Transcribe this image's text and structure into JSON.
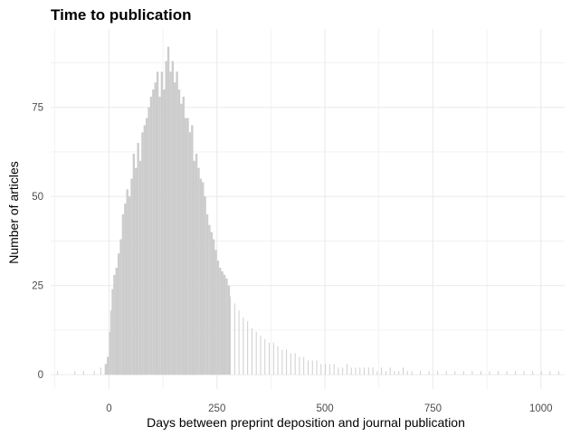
{
  "chart_data": {
    "type": "bar",
    "title": "Time to publication",
    "xlabel": "Days between preprint deposition and journal publication",
    "ylabel": "Number of articles",
    "xlim": [
      -135,
      1055
    ],
    "ylim": [
      -4,
      97
    ],
    "x_ticks": [
      0,
      250,
      500,
      750,
      1000
    ],
    "x_tick_labels": [
      "0",
      "250",
      "500",
      "750",
      "1000"
    ],
    "y_ticks": [
      0,
      25,
      50,
      75
    ],
    "y_tick_labels": [
      "0",
      "25",
      "50",
      "75"
    ],
    "grid": true,
    "bar_color": "#cccccc",
    "grid_color": "#ebebeb",
    "bin_width": 2,
    "series": [
      {
        "x": [
          -120,
          -80,
          -60,
          -35,
          -20,
          -10,
          -5,
          0,
          3,
          6,
          10,
          15,
          20,
          25,
          30,
          35,
          40,
          45,
          50,
          55,
          60,
          65,
          70,
          75,
          80,
          85,
          90,
          95,
          100,
          105,
          110,
          115,
          120,
          125,
          130,
          135,
          140,
          145,
          150,
          155,
          160,
          165,
          170,
          175,
          180,
          185,
          190,
          195,
          200,
          205,
          210,
          215,
          220,
          225,
          230,
          235,
          240,
          245,
          250,
          255,
          260,
          265,
          270,
          275,
          280,
          290,
          300,
          310,
          320,
          330,
          340,
          350,
          360,
          370,
          380,
          390,
          400,
          410,
          420,
          430,
          440,
          450,
          460,
          470,
          480,
          490,
          500,
          510,
          520,
          530,
          540,
          550,
          560,
          570,
          580,
          590,
          600,
          610,
          620,
          630,
          640,
          650,
          660,
          670,
          680,
          690,
          700,
          720,
          740,
          760,
          780,
          800,
          820,
          840,
          860,
          880,
          900,
          920,
          940,
          960,
          980,
          1000,
          1020,
          1040
        ],
        "values": [
          1,
          1,
          1,
          1,
          2,
          3,
          5,
          12,
          18,
          24,
          28,
          30,
          34,
          38,
          45,
          48,
          52,
          50,
          55,
          62,
          58,
          65,
          60,
          68,
          70,
          72,
          75,
          78,
          80,
          82,
          85,
          78,
          85,
          80,
          88,
          92,
          85,
          88,
          82,
          85,
          80,
          76,
          78,
          72,
          72,
          68,
          70,
          60,
          62,
          58,
          55,
          54,
          50,
          45,
          42,
          40,
          38,
          35,
          32,
          30,
          29,
          28,
          27,
          25,
          22,
          20,
          18,
          16,
          15,
          13,
          12,
          11,
          10,
          9,
          9,
          8,
          7,
          7,
          6,
          6,
          5,
          5,
          4,
          4,
          4,
          3,
          3,
          3,
          3,
          2,
          2,
          3,
          2,
          2,
          2,
          2,
          2,
          2,
          1,
          2,
          1,
          2,
          1,
          1,
          2,
          1,
          1,
          1,
          1,
          1,
          1,
          1,
          1,
          1,
          1,
          1,
          1,
          1,
          1,
          1,
          1,
          1,
          1,
          1
        ]
      }
    ]
  }
}
